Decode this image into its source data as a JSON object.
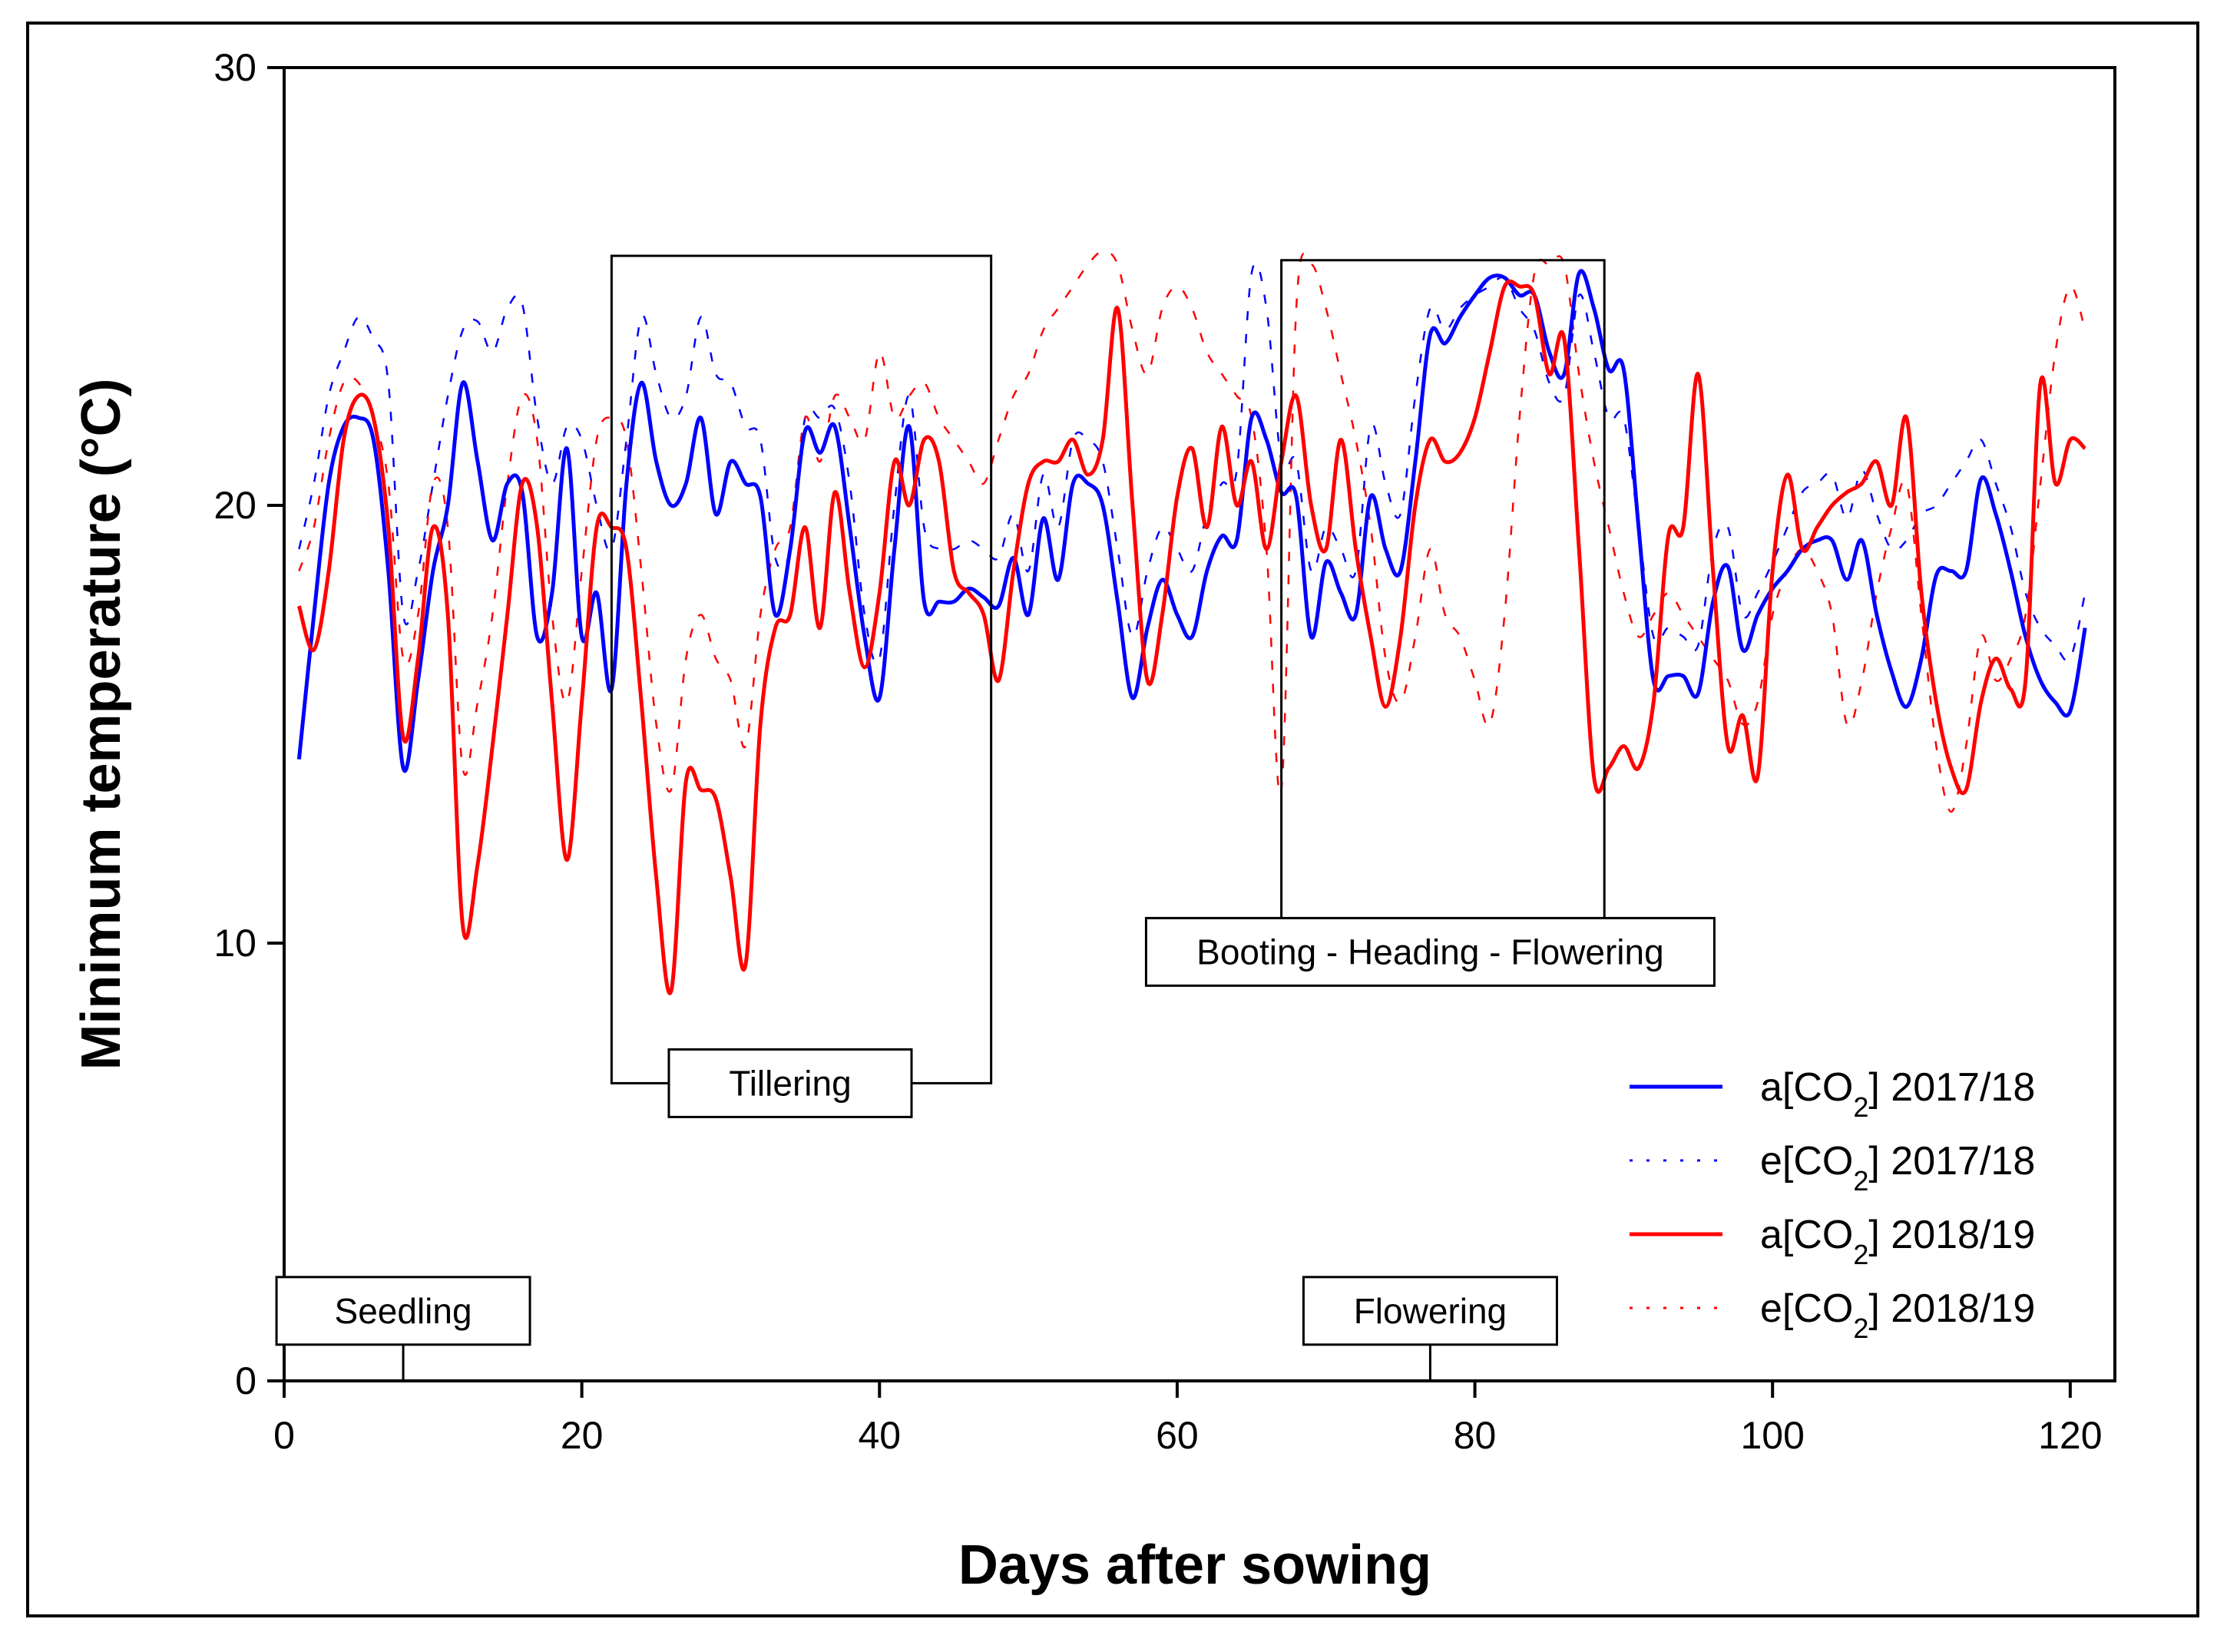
{
  "chart_data": {
    "type": "line",
    "title": "",
    "xlabel": "Days after sowing",
    "ylabel": "Minimum temperature (°C)",
    "xlim": [
      0,
      123
    ],
    "ylim": [
      0,
      30
    ],
    "xticks": [
      0,
      20,
      40,
      60,
      80,
      100,
      120
    ],
    "yticks": [
      0,
      10,
      20,
      30
    ],
    "grid": false,
    "legend_position": "bottom-right",
    "series": [
      {
        "name": "a[CO2] 2017/18",
        "label_main": "a[CO",
        "label_sub": "2",
        "label_tail": "] 2017/18",
        "color": "#0000ff",
        "style": "solid",
        "x": [
          1,
          2,
          3,
          4,
          5,
          6,
          7,
          8,
          9,
          10,
          11,
          12,
          13,
          14,
          15,
          16,
          17,
          18,
          19,
          20,
          21,
          22,
          23,
          24,
          25,
          26,
          27,
          28,
          29,
          30,
          31,
          32,
          33,
          34,
          35,
          36,
          37,
          38,
          39,
          40,
          41,
          42,
          43,
          44,
          45,
          46,
          47,
          48,
          49,
          50,
          51,
          52,
          53,
          54,
          55,
          56,
          57,
          58,
          59,
          60,
          61,
          62,
          63,
          64,
          65,
          66,
          67,
          68,
          69,
          70,
          71,
          72,
          73,
          74,
          75,
          76,
          77,
          78,
          79,
          80,
          81,
          82,
          83,
          84,
          85,
          86,
          87,
          88,
          89,
          90,
          91,
          92,
          93,
          94,
          95,
          96,
          97,
          98,
          99,
          100,
          101,
          102,
          103,
          104,
          105,
          106,
          107,
          108,
          109,
          110,
          111,
          112,
          113,
          114,
          115,
          116,
          117,
          118,
          119,
          120,
          121
        ],
        "values": [
          14.2,
          17.5,
          20.5,
          21.8,
          22.0,
          21.5,
          18.5,
          14.0,
          16.0,
          18.5,
          20.0,
          22.8,
          21.0,
          19.2,
          20.5,
          20.3,
          17.0,
          18.0,
          21.3,
          17.0,
          18.0,
          15.8,
          20.5,
          22.8,
          21.0,
          20.0,
          20.5,
          22.0,
          19.8,
          21.0,
          20.5,
          20.2,
          17.5,
          19.0,
          21.7,
          21.2,
          21.8,
          19.5,
          17.0,
          15.6,
          19.0,
          21.8,
          17.8,
          17.8,
          17.8,
          18.1,
          17.9,
          17.7,
          18.8,
          17.5,
          19.7,
          18.3,
          20.5,
          20.5,
          20.0,
          17.8,
          15.6,
          17.2,
          18.3,
          17.5,
          17.0,
          18.5,
          19.3,
          19.2,
          22.0,
          21.5,
          20.3,
          20.2,
          17.0,
          18.7,
          18.0,
          17.5,
          20.2,
          19.0,
          18.5,
          21.0,
          23.9,
          23.7,
          24.3,
          24.8,
          25.2,
          25.2,
          24.8,
          24.8,
          23.5,
          23.0,
          25.3,
          24.5,
          23.1,
          23.1,
          19.5,
          16.0,
          16.1,
          16.1,
          15.7,
          17.8,
          18.6,
          16.7,
          17.5,
          18.1,
          18.5,
          19.0,
          19.2,
          19.2,
          18.3,
          19.2,
          17.5,
          16.2,
          15.4,
          16.5,
          18.4,
          18.5,
          18.5,
          20.6,
          19.8,
          18.5,
          17.0,
          16.0,
          15.5,
          15.3,
          17.2
        ]
      },
      {
        "name": "e[CO2] 2017/18",
        "label_main": "e[CO",
        "label_sub": "2",
        "label_tail": "] 2017/18",
        "color": "#0000ff",
        "style": "dotted",
        "x": [
          1,
          2,
          3,
          4,
          5,
          6,
          7,
          8,
          9,
          10,
          11,
          12,
          13,
          14,
          15,
          16,
          17,
          18,
          19,
          20,
          21,
          22,
          23,
          24,
          25,
          26,
          27,
          28,
          29,
          30,
          31,
          32,
          33,
          34,
          35,
          36,
          37,
          38,
          39,
          40,
          41,
          42,
          43,
          44,
          45,
          46,
          47,
          48,
          49,
          50,
          51,
          52,
          53,
          54,
          55,
          56,
          57,
          58,
          59,
          60,
          61,
          62,
          63,
          64,
          65,
          66,
          67,
          68,
          69,
          70,
          71,
          72,
          73,
          74,
          75,
          76,
          77,
          78,
          79,
          80,
          81,
          82,
          83,
          84,
          85,
          86,
          87,
          88,
          89,
          90,
          91,
          92,
          93,
          94,
          95,
          96,
          97,
          98,
          99,
          100,
          101,
          102,
          103,
          104,
          105,
          106,
          107,
          108,
          109,
          110,
          111,
          112,
          113,
          114,
          115,
          116,
          117,
          118,
          119,
          120,
          121
        ],
        "values": [
          19.0,
          20.5,
          22.5,
          23.5,
          24.3,
          23.8,
          22.8,
          17.5,
          18.5,
          20.5,
          22.5,
          24.0,
          24.2,
          23.5,
          24.5,
          24.6,
          22.0,
          20.5,
          21.8,
          21.5,
          20.0,
          19.0,
          21.5,
          24.3,
          23.0,
          22.0,
          22.5,
          24.3,
          23.0,
          22.8,
          21.8,
          21.5,
          18.8,
          19.0,
          22.0,
          22.0,
          22.2,
          20.5,
          17.5,
          16.5,
          20.0,
          22.5,
          19.5,
          19.0,
          19.0,
          19.2,
          19.0,
          18.8,
          19.8,
          18.5,
          20.7,
          19.5,
          21.5,
          21.5,
          21.0,
          19.0,
          17.0,
          18.5,
          19.5,
          19.0,
          18.5,
          19.8,
          20.5,
          20.8,
          25.3,
          24.5,
          21.0,
          21.0,
          18.5,
          19.5,
          19.0,
          18.5,
          21.8,
          20.5,
          19.8,
          22.5,
          24.5,
          24.0,
          24.5,
          24.8,
          25.0,
          25.2,
          24.5,
          24.0,
          22.8,
          22.5,
          24.8,
          23.5,
          22.0,
          22.0,
          19.5,
          17.0,
          17.2,
          17.0,
          16.8,
          19.0,
          19.5,
          17.5,
          18.0,
          18.7,
          19.5,
          20.3,
          20.5,
          20.7,
          19.7,
          20.8,
          19.8,
          19.0,
          19.2,
          19.8,
          20.0,
          20.5,
          21.0,
          21.5,
          20.5,
          19.5,
          18.0,
          17.2,
          16.8,
          16.5,
          18.0
        ]
      },
      {
        "name": "a[CO2] 2018/19",
        "label_main": "a[CO",
        "label_sub": "2",
        "label_tail": "] 2018/19",
        "color": "#ff0000",
        "style": "solid",
        "x": [
          1,
          2,
          3,
          4,
          5,
          6,
          7,
          8,
          9,
          10,
          11,
          12,
          13,
          14,
          15,
          16,
          17,
          18,
          19,
          20,
          21,
          22,
          23,
          24,
          25,
          26,
          27,
          28,
          29,
          30,
          31,
          32,
          33,
          34,
          35,
          36,
          37,
          38,
          39,
          40,
          41,
          42,
          43,
          44,
          45,
          46,
          47,
          48,
          49,
          50,
          51,
          52,
          53,
          54,
          55,
          56,
          57,
          58,
          59,
          60,
          61,
          62,
          63,
          64,
          65,
          66,
          67,
          68,
          69,
          70,
          71,
          72,
          73,
          74,
          75,
          76,
          77,
          78,
          79,
          80,
          81,
          82,
          83,
          84,
          85,
          86,
          87,
          88,
          89,
          90,
          91,
          92,
          93,
          94,
          95,
          96,
          97,
          98,
          99,
          100,
          101,
          102,
          103,
          104,
          105,
          106,
          107,
          108,
          109,
          110,
          111,
          112,
          113,
          114,
          115,
          116,
          117,
          118,
          119,
          120,
          121
        ],
        "values": [
          17.7,
          16.7,
          18.5,
          21.5,
          22.5,
          22.0,
          19.5,
          14.7,
          16.5,
          19.5,
          17.5,
          10.4,
          11.8,
          14.5,
          17.5,
          20.5,
          19.5,
          15.5,
          11.9,
          15.5,
          19.5,
          19.5,
          19.0,
          15.5,
          11.5,
          8.9,
          13.7,
          13.5,
          13.3,
          11.5,
          9.5,
          15.0,
          17.2,
          17.5,
          19.5,
          17.2,
          20.3,
          18.0,
          16.3,
          18.0,
          21.0,
          20.0,
          21.5,
          21.0,
          18.5,
          18.0,
          17.5,
          16.0,
          18.5,
          20.5,
          21.0,
          21.0,
          21.5,
          20.7,
          21.5,
          24.5,
          20.0,
          16.0,
          17.5,
          20.2,
          21.3,
          19.5,
          21.8,
          20.0,
          21.0,
          19.0,
          21.0,
          22.5,
          20.0,
          19.0,
          21.5,
          19.0,
          17.0,
          15.4,
          17.0,
          20.0,
          21.5,
          21.0,
          21.2,
          22.0,
          23.5,
          25.0,
          25.0,
          24.8,
          23.0,
          23.8,
          19.0,
          13.8,
          14.0,
          14.5,
          14.0,
          15.5,
          19.3,
          19.5,
          23.0,
          18.5,
          14.5,
          15.2,
          13.8,
          18.5,
          20.7,
          19.0,
          19.5,
          20.0,
          20.3,
          20.5,
          21.0,
          20.0,
          22.0,
          18.0,
          15.5,
          14.0,
          13.5,
          15.5,
          16.5,
          15.8,
          16.0,
          22.8,
          20.5,
          21.5,
          21.3
        ]
      },
      {
        "name": "e[CO2] 2018/19",
        "label_main": "e[CO",
        "label_sub": "2",
        "label_tail": "] 2018/19",
        "color": "#ff0000",
        "style": "dotted",
        "x": [
          1,
          2,
          3,
          4,
          5,
          6,
          7,
          8,
          9,
          10,
          11,
          12,
          13,
          14,
          15,
          16,
          17,
          18,
          19,
          20,
          21,
          22,
          23,
          24,
          25,
          26,
          27,
          28,
          29,
          30,
          31,
          32,
          33,
          34,
          35,
          36,
          37,
          38,
          39,
          40,
          41,
          42,
          43,
          44,
          45,
          46,
          47,
          48,
          49,
          50,
          51,
          52,
          53,
          54,
          55,
          56,
          57,
          58,
          59,
          60,
          61,
          62,
          63,
          64,
          65,
          66,
          67,
          68,
          69,
          70,
          71,
          72,
          73,
          74,
          75,
          76,
          77,
          78,
          79,
          80,
          81,
          82,
          83,
          84,
          85,
          86,
          87,
          88,
          89,
          90,
          91,
          92,
          93,
          94,
          95,
          96,
          97,
          98,
          99,
          100,
          101,
          102,
          103,
          104,
          105,
          106,
          107,
          108,
          109,
          110,
          111,
          112,
          113,
          114,
          115,
          116,
          117,
          118,
          119,
          120,
          121
        ],
        "values": [
          18.5,
          19.5,
          21.5,
          22.8,
          22.8,
          22.0,
          20.5,
          16.5,
          17.5,
          20.5,
          19.5,
          14.0,
          15.5,
          17.5,
          20.5,
          22.5,
          21.5,
          17.5,
          15.5,
          18.5,
          21.5,
          22.0,
          21.5,
          18.5,
          15.0,
          13.5,
          16.5,
          17.5,
          16.5,
          16.0,
          14.5,
          17.5,
          19.0,
          19.5,
          22.0,
          21.0,
          22.5,
          22.0,
          21.5,
          23.5,
          22.0,
          22.5,
          22.8,
          22.0,
          21.5,
          21.0,
          20.5,
          21.5,
          22.5,
          23.0,
          24.0,
          24.5,
          25.0,
          25.5,
          25.8,
          25.5,
          24.0,
          23.0,
          24.5,
          25.0,
          24.5,
          23.5,
          23.0,
          22.5,
          22.0,
          19.0,
          13.5,
          24.5,
          25.5,
          24.5,
          23.0,
          21.5,
          19.5,
          16.5,
          15.5,
          17.0,
          19.0,
          17.5,
          17.0,
          16.0,
          15.0,
          17.5,
          22.0,
          25.3,
          25.5,
          25.5,
          23.0,
          21.0,
          19.5,
          18.0,
          17.0,
          17.5,
          18.0,
          17.5,
          17.0,
          16.5,
          16.0,
          15.0,
          15.5,
          17.5,
          18.5,
          19.0,
          18.5,
          17.5,
          15.0,
          16.0,
          18.0,
          19.5,
          20.5,
          17.5,
          14.5,
          13.0,
          14.5,
          17.0,
          16.0,
          16.5,
          17.5,
          20.5,
          23.5,
          25.0,
          24.0
        ]
      }
    ],
    "annotations": [
      {
        "text": "Tillering",
        "x_start": 22,
        "x_end": 47.5,
        "y_top": 25.7,
        "y_bottom": 6.8,
        "label_x": 34,
        "label_y": 6.8
      },
      {
        "text": "Booting - Heading - Flowering",
        "x_start": 67,
        "x_end": 88.7,
        "y_top": 25.6,
        "y_bottom": 9.8,
        "label_x": 77,
        "label_y": 9.8
      },
      {
        "text": "Seedling",
        "x_marker": 8,
        "label_x": 8,
        "label_y": 1.6
      },
      {
        "text": "Flowering",
        "x_marker": 77,
        "label_x": 77,
        "label_y": 1.6
      }
    ]
  }
}
